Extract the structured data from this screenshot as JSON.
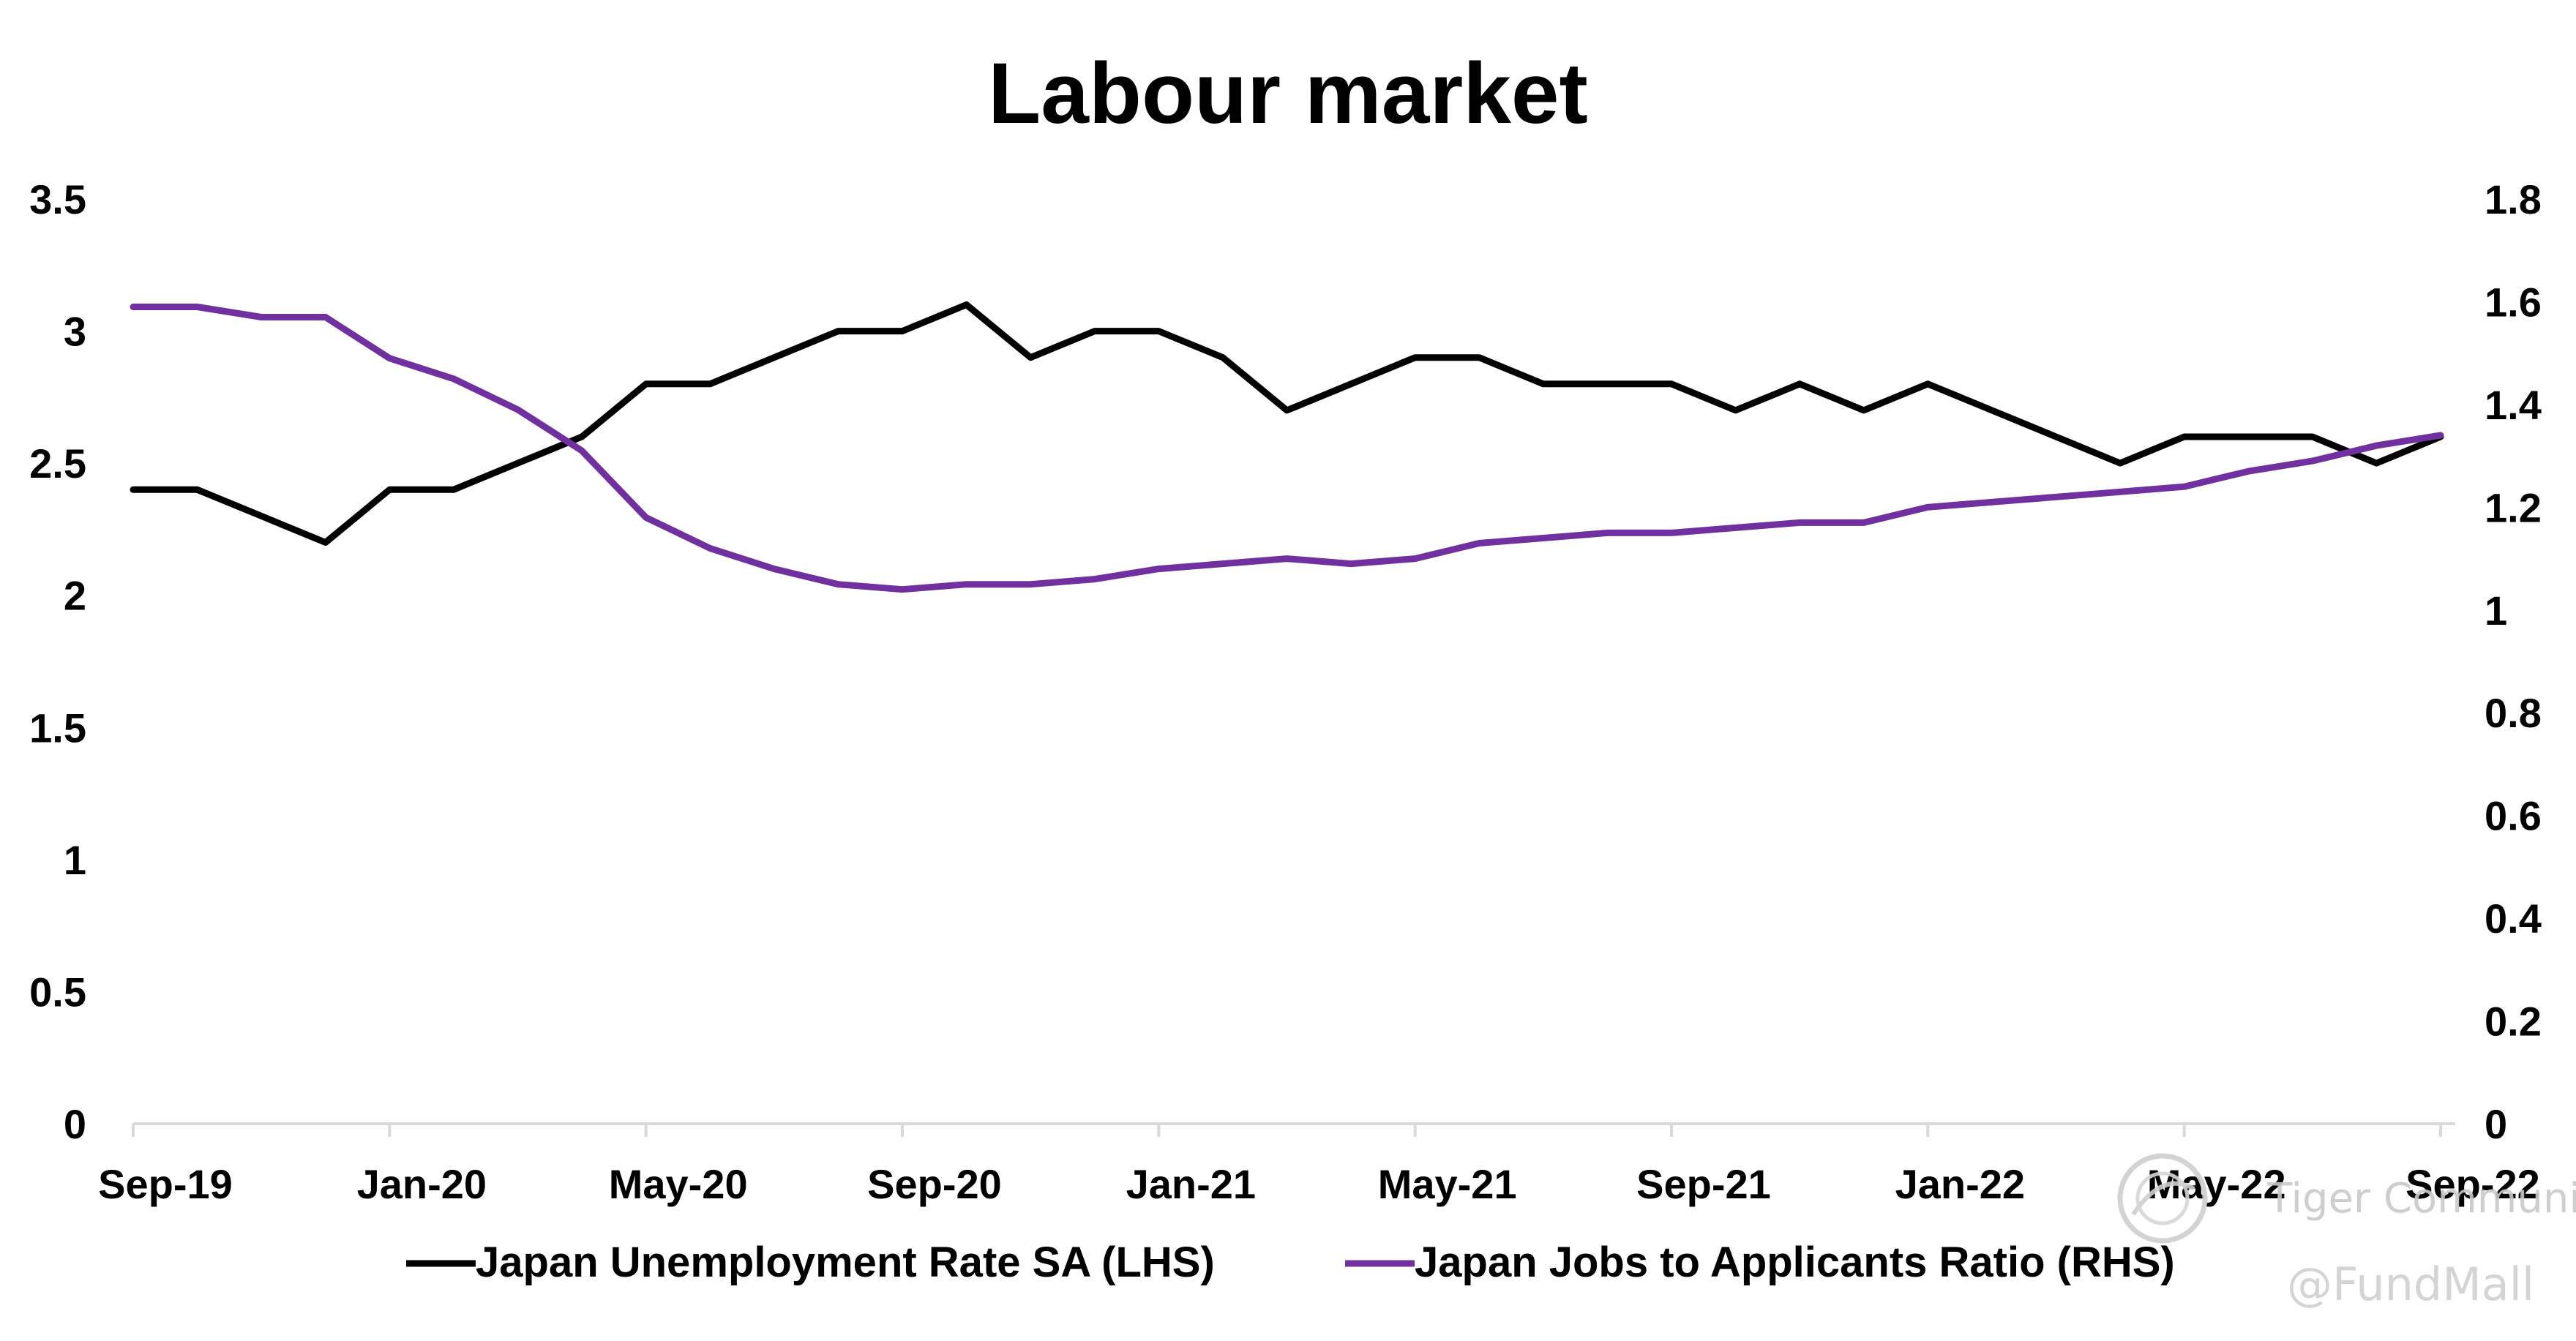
{
  "chart_data": {
    "type": "line",
    "title": "Labour market",
    "x": [
      "Sep-19",
      "Oct-19",
      "Nov-19",
      "Dec-19",
      "Jan-20",
      "Feb-20",
      "Mar-20",
      "Apr-20",
      "May-20",
      "Jun-20",
      "Jul-20",
      "Aug-20",
      "Sep-20",
      "Oct-20",
      "Nov-20",
      "Dec-20",
      "Jan-21",
      "Feb-21",
      "Mar-21",
      "Apr-21",
      "May-21",
      "Jun-21",
      "Jul-21",
      "Aug-21",
      "Sep-21",
      "Oct-21",
      "Nov-21",
      "Dec-21",
      "Jan-22",
      "Feb-22",
      "Mar-22",
      "Apr-22",
      "May-22",
      "Jun-22",
      "Jul-22",
      "Aug-22",
      "Sep-22"
    ],
    "x_tick_labels": [
      "Sep-19",
      "Jan-20",
      "May-20",
      "Sep-20",
      "Jan-21",
      "May-21",
      "Sep-21",
      "Jan-22",
      "May-22",
      "Sep-22"
    ],
    "y_left": {
      "ylim": [
        0,
        3.5
      ],
      "ticks": [
        "0",
        "0.5",
        "1",
        "1.5",
        "2",
        "2.5",
        "3",
        "3.5"
      ]
    },
    "y_right": {
      "ylim": [
        0,
        1.8
      ],
      "ticks": [
        "0",
        "0.2",
        "0.4",
        "0.6",
        "0.8",
        "1",
        "1.2",
        "1.4",
        "1.6",
        "1.8"
      ]
    },
    "grid": false,
    "legend_position": "bottom",
    "series": [
      {
        "name": "Japan Unemployment Rate SA (LHS)",
        "axis": "left",
        "color": "#000000",
        "values": [
          2.4,
          2.4,
          2.3,
          2.2,
          2.4,
          2.4,
          2.5,
          2.6,
          2.8,
          2.8,
          2.9,
          3.0,
          3.0,
          3.1,
          2.9,
          3.0,
          3.0,
          2.9,
          2.7,
          2.8,
          2.9,
          2.9,
          2.8,
          2.8,
          2.8,
          2.7,
          2.8,
          2.7,
          2.8,
          2.7,
          2.6,
          2.5,
          2.6,
          2.6,
          2.6,
          2.5,
          2.6
        ]
      },
      {
        "name": "Japan Jobs to Applicants Ratio (RHS)",
        "axis": "right",
        "color": "#7030a0",
        "values": [
          1.59,
          1.59,
          1.57,
          1.57,
          1.49,
          1.45,
          1.39,
          1.31,
          1.18,
          1.12,
          1.08,
          1.05,
          1.04,
          1.05,
          1.05,
          1.06,
          1.08,
          1.09,
          1.1,
          1.09,
          1.1,
          1.13,
          1.14,
          1.15,
          1.15,
          1.16,
          1.17,
          1.17,
          1.2,
          1.21,
          1.22,
          1.23,
          1.24,
          1.27,
          1.29,
          1.32,
          1.34
        ]
      }
    ]
  },
  "watermark": {
    "brand": "Tiger Community",
    "handle": "@FundMall",
    "icon": "tiger-logo-icon"
  }
}
